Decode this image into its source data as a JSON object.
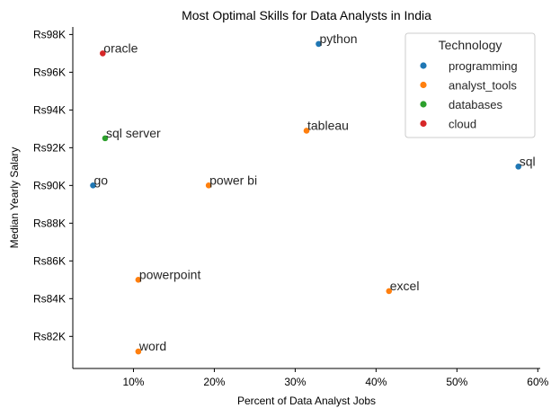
{
  "chart_data": {
    "type": "scatter",
    "title": "Most Optimal Skills for Data Analysts in India",
    "xlabel": "Percent of Data Analyst Jobs",
    "ylabel": "Median Yearly Salary",
    "xlim": [
      2.5,
      60.3
    ],
    "ylim": [
      80300,
      98400
    ],
    "x_ticks": [
      10,
      20,
      30,
      40,
      50,
      60
    ],
    "x_tick_labels": [
      "10%",
      "20%",
      "30%",
      "40%",
      "50%",
      "60%"
    ],
    "y_ticks": [
      82000,
      84000,
      86000,
      88000,
      90000,
      92000,
      94000,
      96000,
      98000
    ],
    "y_tick_labels": [
      "Rs82K",
      "Rs84K",
      "Rs86K",
      "Rs88K",
      "Rs90K",
      "Rs92K",
      "Rs94K",
      "Rs96K",
      "Rs98K"
    ],
    "grid": false,
    "legend": {
      "title": "Technology",
      "placement": "top-right",
      "entries": [
        {
          "label": "programming",
          "color": "#1f77b4"
        },
        {
          "label": "analyst_tools",
          "color": "#ff7f0e"
        },
        {
          "label": "databases",
          "color": "#2ca02c"
        },
        {
          "label": "cloud",
          "color": "#d62728"
        }
      ]
    },
    "points": [
      {
        "label": "python",
        "x": 32.9,
        "y": 97500,
        "category": "programming"
      },
      {
        "label": "oracle",
        "x": 6.2,
        "y": 97000,
        "category": "cloud"
      },
      {
        "label": "tableau",
        "x": 31.4,
        "y": 92900,
        "category": "analyst_tools"
      },
      {
        "label": "sql server",
        "x": 6.5,
        "y": 92500,
        "category": "databases"
      },
      {
        "label": "sql",
        "x": 57.6,
        "y": 91000,
        "category": "programming"
      },
      {
        "label": "go",
        "x": 5.0,
        "y": 90000,
        "category": "programming"
      },
      {
        "label": "power bi",
        "x": 19.3,
        "y": 90000,
        "category": "analyst_tools"
      },
      {
        "label": "powerpoint",
        "x": 10.6,
        "y": 85000,
        "category": "analyst_tools"
      },
      {
        "label": "excel",
        "x": 41.6,
        "y": 84400,
        "category": "analyst_tools"
      },
      {
        "label": "word",
        "x": 10.6,
        "y": 81200,
        "category": "analyst_tools"
      }
    ]
  }
}
